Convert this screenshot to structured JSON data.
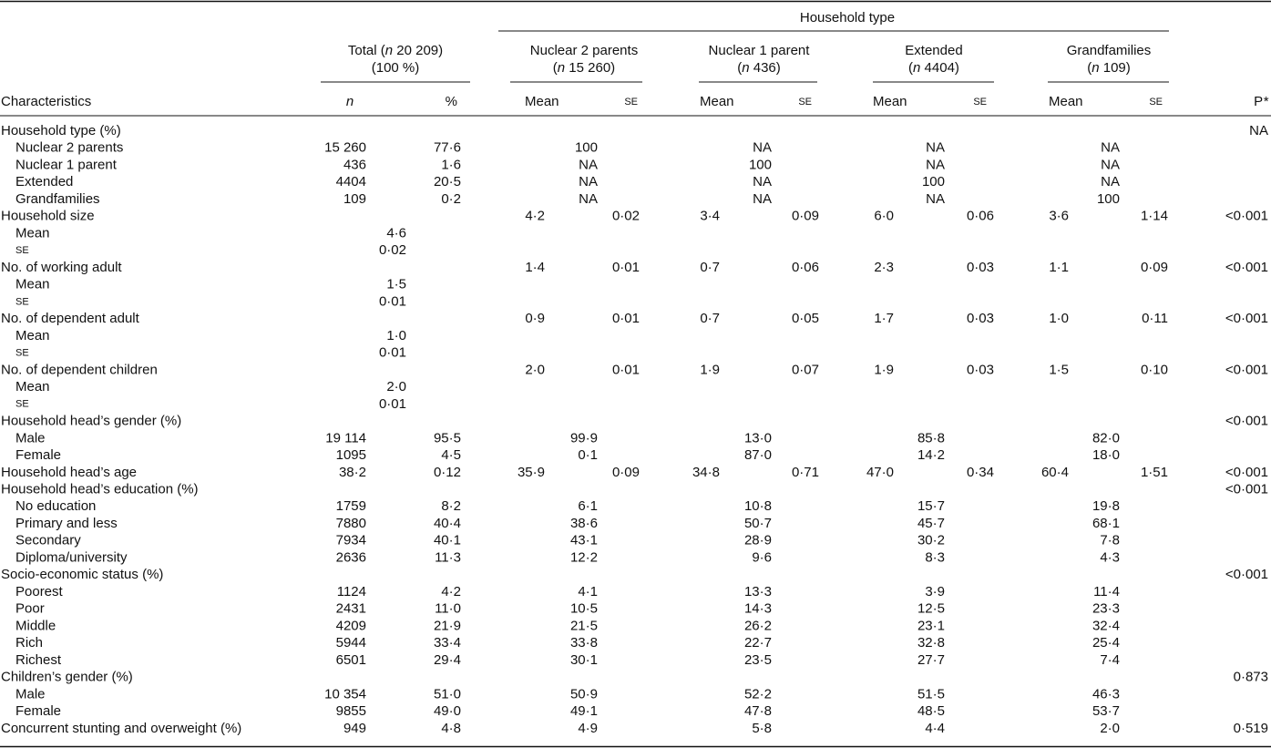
{
  "header": {
    "spanner": "Household type",
    "characteristics": "Characteristics",
    "total": {
      "line1": [
        "Total (",
        "n",
        " 20 209)"
      ],
      "line2": "(100 %)",
      "n": "n",
      "pct": "%"
    },
    "groups": [
      {
        "line1": "Nuclear 2 parents",
        "line2": [
          "(",
          "n",
          " 15 260)"
        ],
        "mean": "Mean",
        "se": "SE"
      },
      {
        "line1": "Nuclear 1 parent",
        "line2": [
          "(",
          "n",
          " 436)"
        ],
        "mean": "Mean",
        "se": "SE"
      },
      {
        "line1": "Extended",
        "line2": [
          "(",
          "n",
          " 4404)"
        ],
        "mean": "Mean",
        "se": "SE"
      },
      {
        "line1": "Grandfamilies",
        "line2": [
          "(",
          "n",
          " 109)"
        ],
        "mean": "Mean",
        "se": "SE"
      }
    ],
    "p": [
      "P",
      "*"
    ]
  },
  "sections": [
    {
      "label": "Household type (%)",
      "cells": {
        "p": "NA"
      },
      "rows": [
        {
          "label": "Nuclear 2 parents",
          "cells": {
            "n": "15 260",
            "pct": "77·6",
            "nuc2": "100",
            "nuc1": "NA",
            "ext": "NA",
            "grand": "NA"
          }
        },
        {
          "label": "Nuclear 1 parent",
          "cells": {
            "n": "436",
            "pct": "1·6",
            "nuc2": "NA",
            "nuc1": "100",
            "ext": "NA",
            "grand": "NA"
          }
        },
        {
          "label": "Extended",
          "cells": {
            "n": "4404",
            "pct": "20·5",
            "nuc2": "NA",
            "nuc1": "NA",
            "ext": "100",
            "grand": "NA"
          }
        },
        {
          "label": "Grandfamilies",
          "cells": {
            "n": "109",
            "pct": "0·2",
            "nuc2": "NA",
            "nuc1": "NA",
            "ext": "NA",
            "grand": "100"
          }
        }
      ]
    },
    {
      "label": "Household size",
      "cells": {
        "nuc2_mean": "4·2",
        "nuc2_se": "0·02",
        "nuc1_mean": "3·4",
        "nuc1_se": "0·09",
        "ext_mean": "6·0",
        "ext_se": "0·06",
        "grand_mean": "3·6",
        "grand_se": "1·14",
        "p": "<0·001"
      },
      "rows": [
        {
          "label": "Mean",
          "cells": {
            "total": "4·6"
          }
        },
        {
          "label": "SE",
          "cells": {
            "total": "0·02"
          }
        }
      ]
    },
    {
      "label": "No. of working adult",
      "cells": {
        "nuc2_mean": "1·4",
        "nuc2_se": "0·01",
        "nuc1_mean": "0·7",
        "nuc1_se": "0·06",
        "ext_mean": "2·3",
        "ext_se": "0·03",
        "grand_mean": "1·1",
        "grand_se": "0·09",
        "p": "<0·001"
      },
      "rows": [
        {
          "label": "Mean",
          "cells": {
            "total": "1·5"
          }
        },
        {
          "label": "SE",
          "cells": {
            "total": "0·01"
          }
        }
      ]
    },
    {
      "label": "No. of dependent adult",
      "cells": {
        "nuc2_mean": "0·9",
        "nuc2_se": "0·01",
        "nuc1_mean": "0·7",
        "nuc1_se": "0·05",
        "ext_mean": "1·7",
        "ext_se": "0·03",
        "grand_mean": "1·0",
        "grand_se": "0·11",
        "p": "<0·001"
      },
      "rows": [
        {
          "label": "Mean",
          "cells": {
            "total": "1·0"
          }
        },
        {
          "label": "SE",
          "cells": {
            "total": "0·01"
          }
        }
      ]
    },
    {
      "label": "No. of dependent children",
      "cells": {
        "nuc2_mean": "2·0",
        "nuc2_se": "0·01",
        "nuc1_mean": "1·9",
        "nuc1_se": "0·07",
        "ext_mean": "1·9",
        "ext_se": "0·03",
        "grand_mean": "1·5",
        "grand_se": "0·10",
        "p": "<0·001"
      },
      "rows": [
        {
          "label": "Mean",
          "cells": {
            "total": "2·0"
          }
        },
        {
          "label": "SE",
          "cells": {
            "total": "0·01"
          }
        }
      ]
    },
    {
      "label": "Household head’s gender (%)",
      "cells": {
        "p": "<0·001"
      },
      "rows": [
        {
          "label": "Male",
          "cells": {
            "n": "19 114",
            "pct": "95·5",
            "nuc2": "99·9",
            "nuc1": "13·0",
            "ext": "85·8",
            "grand": "82·0"
          }
        },
        {
          "label": "Female",
          "cells": {
            "n": "1095",
            "pct": "4·5",
            "nuc2": "0·1",
            "nuc1": "87·0",
            "ext": "14·2",
            "grand": "18·0"
          }
        }
      ]
    },
    {
      "label": "Household head’s age",
      "cells": {
        "n": "38·2",
        "pct": "0·12",
        "nuc2_mean": "35·9",
        "nuc2_se": "0·09",
        "nuc1_mean": "34·8",
        "nuc1_se": "0·71",
        "ext_mean": "47·0",
        "ext_se": "0·34",
        "grand_mean": "60·4",
        "grand_se": "1·51",
        "p": "<0·001"
      },
      "rows": []
    },
    {
      "label": "Household head’s education (%)",
      "cells": {
        "p": "<0·001"
      },
      "rows": [
        {
          "label": "No education",
          "cells": {
            "n": "1759",
            "pct": "8·2",
            "nuc2": "6·1",
            "nuc1": "10·8",
            "ext": "15·7",
            "grand": "19·8"
          }
        },
        {
          "label": "Primary and less",
          "cells": {
            "n": "7880",
            "pct": "40·4",
            "nuc2": "38·6",
            "nuc1": "50·7",
            "ext": "45·7",
            "grand": "68·1"
          }
        },
        {
          "label": "Secondary",
          "cells": {
            "n": "7934",
            "pct": "40·1",
            "nuc2": "43·1",
            "nuc1": "28·9",
            "ext": "30·2",
            "grand": "7·8"
          }
        },
        {
          "label": "Diploma/university",
          "cells": {
            "n": "2636",
            "pct": "11·3",
            "nuc2": "12·2",
            "nuc1": "9·6",
            "ext": "8·3",
            "grand": "4·3"
          }
        }
      ]
    },
    {
      "label": "Socio-economic status (%)",
      "cells": {
        "p": "<0·001"
      },
      "rows": [
        {
          "label": "Poorest",
          "cells": {
            "n": "1124",
            "pct": "4·2",
            "nuc2": "4·1",
            "nuc1": "13·3",
            "ext": "3·9",
            "grand": "11·4"
          }
        },
        {
          "label": "Poor",
          "cells": {
            "n": "2431",
            "pct": "11·0",
            "nuc2": "10·5",
            "nuc1": "14·3",
            "ext": "12·5",
            "grand": "23·3"
          }
        },
        {
          "label": "Middle",
          "cells": {
            "n": "4209",
            "pct": "21·9",
            "nuc2": "21·5",
            "nuc1": "26·2",
            "ext": "23·1",
            "grand": "32·4"
          }
        },
        {
          "label": "Rich",
          "cells": {
            "n": "5944",
            "pct": "33·4",
            "nuc2": "33·8",
            "nuc1": "22·7",
            "ext": "32·8",
            "grand": "25·4"
          }
        },
        {
          "label": "Richest",
          "cells": {
            "n": "6501",
            "pct": "29·4",
            "nuc2": "30·1",
            "nuc1": "23·5",
            "ext": "27·7",
            "grand": "7·4"
          }
        }
      ]
    },
    {
      "label": "Children’s gender (%)",
      "cells": {
        "p": "0·873"
      },
      "rows": [
        {
          "label": "Male",
          "cells": {
            "n": "10 354",
            "pct": "51·0",
            "nuc2": "50·9",
            "nuc1": "52·2",
            "ext": "51·5",
            "grand": "46·3"
          }
        },
        {
          "label": "Female",
          "cells": {
            "n": "9855",
            "pct": "49·0",
            "nuc2": "49·1",
            "nuc1": "47·8",
            "ext": "48·5",
            "grand": "53·7"
          }
        }
      ]
    },
    {
      "label": "Concurrent stunting and overweight (%)",
      "cells": {
        "n": "949",
        "pct": "4·8",
        "nuc2": "4·9",
        "nuc1": "5·8",
        "ext": "4·4",
        "grand": "2·0",
        "p": "0·519"
      },
      "rows": []
    }
  ]
}
